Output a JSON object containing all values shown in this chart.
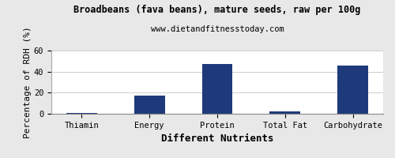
{
  "title": "Broadbeans (fava beans), mature seeds, raw per 100g",
  "subtitle": "www.dietandfitnesstoday.com",
  "categories": [
    "Thiamin",
    "Energy",
    "Protein",
    "Total Fat",
    "Carbohydrate"
  ],
  "values": [
    0.5,
    17,
    47.5,
    2.5,
    45.5
  ],
  "bar_color": "#1e3a7a",
  "xlabel": "Different Nutrients",
  "ylabel": "Percentage of RDH (%)",
  "ylim": [
    0,
    60
  ],
  "yticks": [
    0,
    20,
    40,
    60
  ],
  "background_color": "#e8e8e8",
  "plot_bg_color": "#ffffff",
  "title_fontsize": 8.5,
  "subtitle_fontsize": 7.5,
  "axis_label_fontsize": 8,
  "tick_fontsize": 7.5,
  "xlabel_fontsize": 9
}
